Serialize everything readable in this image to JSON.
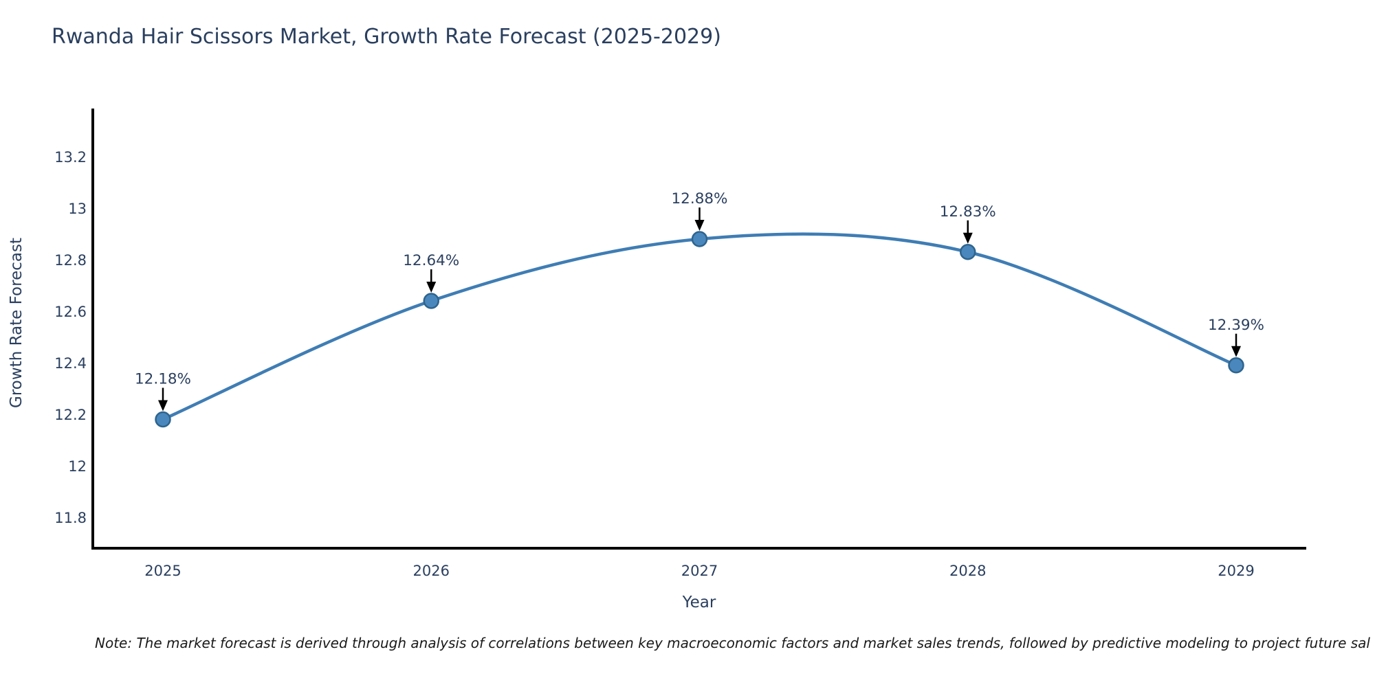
{
  "page": {
    "title": "Rwanda Hair Scissors Market, Growth Rate Forecast (2025-2029)",
    "note": "Note: The market forecast is derived through analysis of correlations between key macroeconomic factors and market sales trends, followed by predictive modeling to project future sal"
  },
  "chart_data": {
    "type": "line",
    "title": "Rwanda Hair Scissors Market, Growth Rate Forecast (2025-2029)",
    "xlabel": "Year",
    "ylabel": "Growth Rate Forecast",
    "x": [
      2025,
      2026,
      2027,
      2028,
      2029
    ],
    "x_tick_labels": [
      "2025",
      "2026",
      "2027",
      "2028",
      "2029"
    ],
    "series": [
      {
        "name": "Growth Rate Forecast",
        "values": [
          12.18,
          12.64,
          12.88,
          12.83,
          12.39
        ]
      }
    ],
    "point_labels": [
      "12.18%",
      "12.64%",
      "12.88%",
      "12.83%",
      "12.39%"
    ],
    "y_tick_values": [
      13.2,
      13.0,
      12.8,
      12.6,
      12.4,
      12.2,
      12.0,
      11.8
    ],
    "y_tick_labels": [
      "13.2",
      "13",
      "12.8",
      "12.6",
      "12.4",
      "12.2",
      "12",
      "11.8"
    ],
    "ylim": [
      11.67,
      13.38
    ],
    "xlim": [
      2024.74,
      2029.27
    ],
    "line_shape": "spline",
    "grid": false,
    "legend": "none",
    "annotation_arrows": true,
    "colors": {
      "line": "#3f7db4",
      "marker_fill": "#4a87bc",
      "marker_edge": "#2e648e",
      "arrow": "#000000",
      "text": "#2a3f5f",
      "axis_line": "#000000",
      "note_text": "#1a1a1a",
      "background": "#ffffff"
    }
  }
}
